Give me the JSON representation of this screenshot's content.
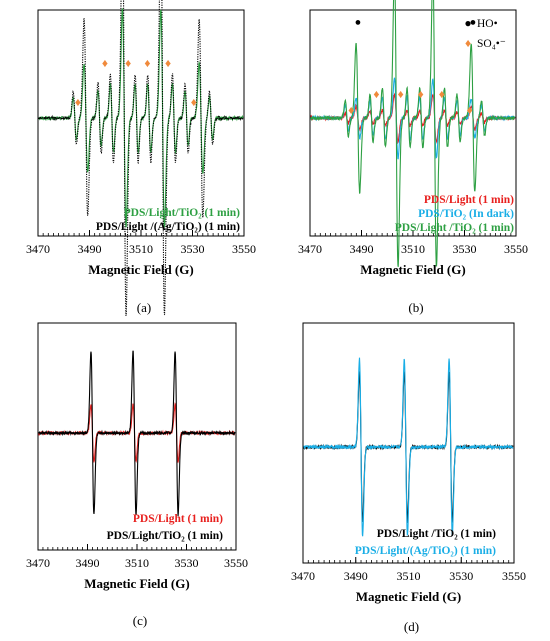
{
  "colors": {
    "black": "#000000",
    "green": "#2ea043",
    "red": "#e8201e",
    "cyan": "#1aaee6",
    "blue": "#1f6fd1",
    "orange": "#f08a3c"
  },
  "chart_data": [
    {
      "id": "a",
      "type": "line",
      "panel_label": "(a)",
      "xlabel": "Magnetic Field (G)",
      "xlim": [
        3470,
        3550
      ],
      "xticks": [
        3470,
        3490,
        3510,
        3530,
        3550
      ],
      "series": [
        {
          "name": "PDS/Light/TiO₂ (1 min)",
          "color": "#2ea043",
          "style": "solid",
          "kind": "dmpo_oh_so4",
          "amp_oh": 0.55,
          "amp_so4": 0.35
        },
        {
          "name": "PDS/Light /(Ag/TiO₂) (1 min)",
          "color": "#000000",
          "style": "dotted",
          "kind": "dmpo_oh_so4",
          "amp_oh": 1.0,
          "amp_so4": 0.45
        }
      ],
      "markers": {
        "oh_symbol": "●",
        "so4_symbol": "♦"
      }
    },
    {
      "id": "b",
      "type": "line",
      "panel_label": "(b)",
      "xlabel": "Magnetic Field (G)",
      "xlim": [
        3470,
        3550
      ],
      "xticks": [
        3470,
        3490,
        3510,
        3530,
        3550
      ],
      "legend_markers": [
        {
          "symbol": "●",
          "label": "HO•"
        },
        {
          "symbol": "♦",
          "label": "SO₄•⁻"
        }
      ],
      "series": [
        {
          "name": "PDS/Light (1 min)",
          "color": "#e8201e",
          "style": "solid",
          "kind": "dmpo_oh_so4",
          "amp_oh": 0.12,
          "amp_so4": 0.08
        },
        {
          "name": "PDS/TiO₂ (In dark)",
          "color": "#1aaee6",
          "style": "solid",
          "kind": "dmpo_oh_so4",
          "amp_oh": 0.2,
          "amp_so4": 0.22
        },
        {
          "name": "PDS/Light /TiO₂ (1 min)",
          "color": "#2ea043",
          "style": "solid",
          "kind": "dmpo_oh_so4",
          "amp_oh": 0.75,
          "amp_so4": 0.3
        }
      ],
      "markers": {
        "oh_symbol": "●",
        "so4_symbol": "♦"
      }
    },
    {
      "id": "c",
      "type": "line",
      "panel_label": "(c)",
      "xlabel": "Magnetic Field (G)",
      "xlim": [
        3470,
        3550
      ],
      "xticks": [
        3470,
        3490,
        3510,
        3530,
        3550
      ],
      "series": [
        {
          "name": "PDS/Light (1 min)",
          "color": "#e8201e",
          "style": "solid",
          "kind": "tempo",
          "amp": 0.35
        },
        {
          "name": "PDS/Light/TiO₂ (1 min)",
          "color": "#000000",
          "style": "solid",
          "kind": "tempo",
          "amp": 1.0
        }
      ]
    },
    {
      "id": "d",
      "type": "line",
      "panel_label": "(d)",
      "xlabel": "Magnetic Field (G)",
      "xlim": [
        3470,
        3550
      ],
      "xticks": [
        3470,
        3490,
        3510,
        3530,
        3550
      ],
      "series": [
        {
          "name": "PDS/Light /TiO₂ (1 min)",
          "color": "#000000",
          "style": "solid",
          "kind": "tempo",
          "amp": 0.85
        },
        {
          "name": "PDS/Light/(Ag/TiO₂) (1 min)",
          "color": "#1aaee6",
          "style": "solid",
          "kind": "tempo",
          "amp": 1.0
        }
      ]
    }
  ]
}
